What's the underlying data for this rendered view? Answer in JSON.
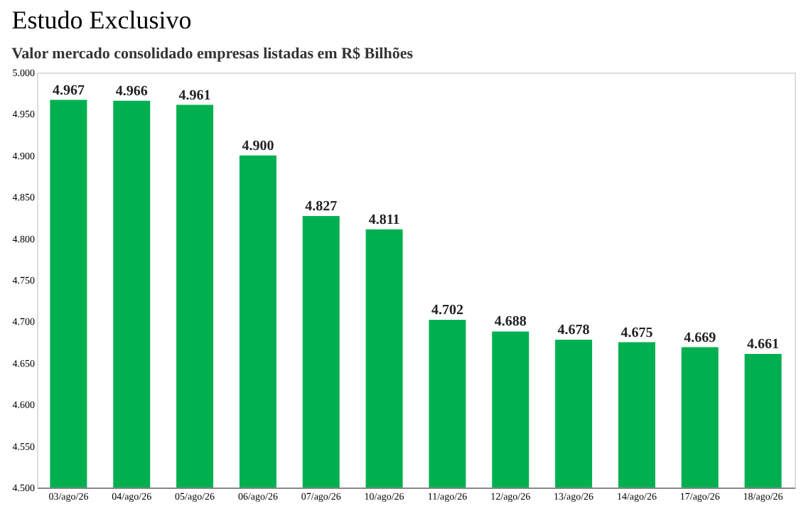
{
  "chart_data": {
    "type": "bar",
    "title": "Estudo Exclusivo",
    "subtitle": "Valor mercado consolidado empresas listadas em R$ Bilhões",
    "categories": [
      "03/ago/26",
      "04/ago/26",
      "05/ago/26",
      "06/ago/26",
      "07/ago/26",
      "10/ago/26",
      "11/ago/26",
      "12/ago/26",
      "13/ago/26",
      "14/ago/26",
      "17/ago/26",
      "18/ago/26"
    ],
    "values": [
      4967,
      4966,
      4961,
      4900,
      4827,
      4811,
      4702,
      4688,
      4678,
      4675,
      4669,
      4661
    ],
    "value_labels": [
      "4.967",
      "4.966",
      "4.961",
      "4.900",
      "4.827",
      "4.811",
      "4.702",
      "4.688",
      "4.678",
      "4.675",
      "4.669",
      "4.661"
    ],
    "color": "#00b050",
    "ylim": [
      4500,
      5000
    ],
    "yticks": [
      {
        "value": 4500,
        "label": "4.500"
      },
      {
        "value": 4550,
        "label": "4.550"
      },
      {
        "value": 4600,
        "label": "4.600"
      },
      {
        "value": 4650,
        "label": "4.650"
      },
      {
        "value": 4700,
        "label": "4.700"
      },
      {
        "value": 4750,
        "label": "4.750"
      },
      {
        "value": 4800,
        "label": "4.800"
      },
      {
        "value": 4850,
        "label": "4.850"
      },
      {
        "value": 4900,
        "label": "4.900"
      },
      {
        "value": 4950,
        "label": "4.950"
      },
      {
        "value": 5000,
        "label": "5.000"
      }
    ],
    "grid": false
  }
}
